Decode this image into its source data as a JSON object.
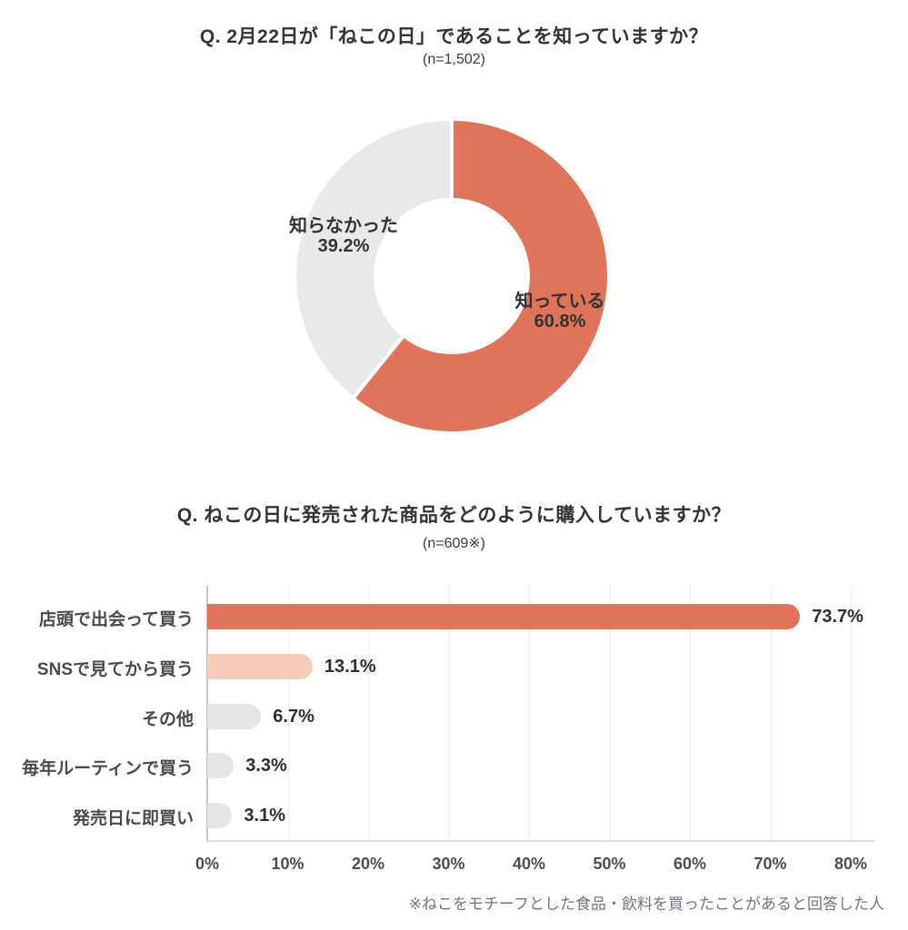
{
  "page": {
    "background": "#ffffff",
    "accent_color": "#E0745A",
    "peach_color": "#F4CBBB",
    "gray_bar_color": "#E5E5E5",
    "gray_donut_color": "#E9E9E9"
  },
  "chart_data": [
    {
      "type": "pie",
      "donut": true,
      "title": "Q. 2月22日が「ねこの日」であることを知っていますか？",
      "subtitle": "(n=1,502)",
      "labels": [
        "知っている",
        "知らなかった"
      ],
      "values": [
        60.8,
        39.2
      ],
      "value_labels": [
        "60.8%",
        "39.2%"
      ],
      "colors": [
        "#E0745A",
        "#E9E9E9"
      ],
      "start_angle": "12-oclock",
      "direction": "clockwise",
      "legend_position": "labels-on-chart"
    },
    {
      "type": "bar",
      "orientation": "horizontal",
      "title": "Q. ねこの日に発売された商品をどのように購入していますか？",
      "subtitle": "(n=609※)",
      "categories": [
        "店頭で出会って買う",
        "SNSで見てから買う",
        "その他",
        "毎年ルーティンで買う",
        "発売日に即買い"
      ],
      "values": [
        73.7,
        13.1,
        6.7,
        3.3,
        3.1
      ],
      "value_labels": [
        "73.7%",
        "13.1%",
        "6.7%",
        "3.3%",
        "3.1%"
      ],
      "bar_colors": [
        "#E0745A",
        "#F4CBBB",
        "#E5E5E5",
        "#E5E5E5",
        "#E5E5E5"
      ],
      "xlim": [
        0,
        80
      ],
      "x_ticks": [
        0,
        10,
        20,
        30,
        40,
        50,
        60,
        70,
        80
      ],
      "x_tick_labels": [
        "0%",
        "10%",
        "20%",
        "30%",
        "40%",
        "50%",
        "60%",
        "70%",
        "80%"
      ],
      "grid": true,
      "footnote": "※ねこをモチーフとした食品・飲料を買ったことがあると回答した人"
    }
  ]
}
